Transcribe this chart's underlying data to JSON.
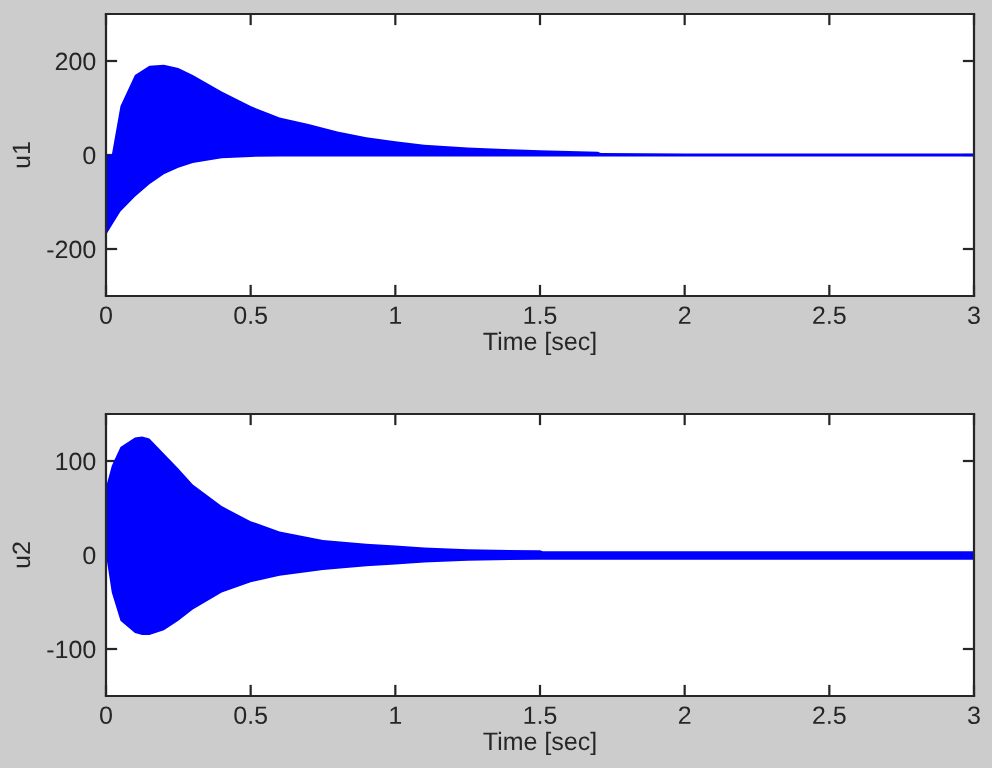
{
  "chart_data": [
    {
      "type": "area",
      "xlabel": "Time [sec]",
      "ylabel": "u1",
      "xlim": [
        0,
        3
      ],
      "ylim": [
        -300,
        300
      ],
      "xticks": [
        0,
        0.5,
        1,
        1.5,
        2,
        2.5,
        3
      ],
      "yticks": [
        -200,
        0,
        200
      ],
      "grid": false,
      "legend": false,
      "x": [
        0,
        0.02,
        0.05,
        0.1,
        0.15,
        0.2,
        0.25,
        0.3,
        0.4,
        0.5,
        0.6,
        0.7,
        0.8,
        0.9,
        1,
        1.1,
        1.25,
        1.4,
        1.5,
        1.7,
        1.71,
        2,
        2.5,
        3
      ],
      "series": [
        {
          "color": "#0000ff",
          "values": [
            -60,
            0,
            104,
            170,
            190,
            192,
            185,
            170,
            135,
            104,
            80,
            66,
            50,
            38,
            29,
            22,
            16,
            12,
            10,
            7,
            4,
            3,
            3,
            3
          ]
        },
        {
          "color": "#0000fe",
          "values": [
            -170,
            -150,
            -120,
            -89,
            -62,
            -41,
            -27,
            -17,
            -7,
            -4,
            -3,
            -3,
            -3,
            -3,
            -3,
            -3,
            -3,
            -3,
            -3,
            -3,
            -3,
            -3,
            -3,
            -3
          ]
        }
      ]
    },
    {
      "type": "area",
      "xlabel": "Time [sec]",
      "ylabel": "u2",
      "xlim": [
        0,
        3
      ],
      "ylim": [
        -150,
        150
      ],
      "xticks": [
        0,
        0.5,
        1,
        1.5,
        2,
        2.5,
        3
      ],
      "yticks": [
        -100,
        0,
        100
      ],
      "grid": false,
      "legend": false,
      "x": [
        0,
        0.02,
        0.05,
        0.1,
        0.125,
        0.15,
        0.2,
        0.25,
        0.3,
        0.4,
        0.5,
        0.6,
        0.75,
        0.9,
        1,
        1.1,
        1.25,
        1.5,
        1.51,
        2,
        2.5,
        3
      ],
      "series": [
        {
          "color": "#0000ff",
          "values": [
            72,
            95,
            115,
            125,
            126,
            124,
            108,
            92,
            75,
            52,
            36,
            25,
            16,
            12,
            10,
            8,
            6,
            5,
            4,
            4,
            4,
            4
          ]
        },
        {
          "color": "#0000fe",
          "values": [
            0,
            -40,
            -70,
            -83,
            -85,
            -85,
            -80,
            -70,
            -58,
            -40,
            -29,
            -22,
            -16,
            -12,
            -10,
            -8,
            -6,
            -5,
            -5,
            -5,
            -5,
            -5
          ]
        }
      ]
    }
  ]
}
